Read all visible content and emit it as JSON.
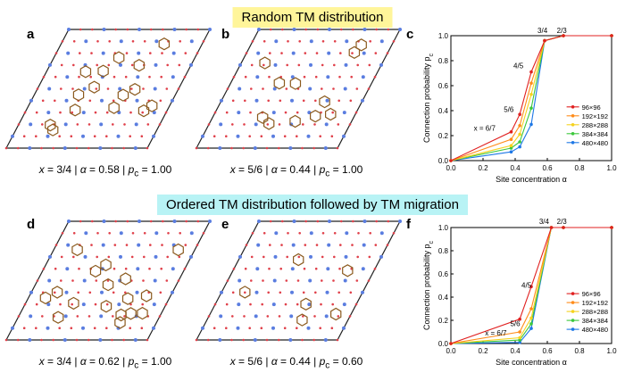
{
  "banners": {
    "top": "Random TM distribution",
    "bottom": "Ordered TM distribution followed by TM migration"
  },
  "panels": [
    {
      "label": "a",
      "caption": {
        "x": "3/4",
        "a": "0.58",
        "pc": "1.00"
      }
    },
    {
      "label": "b",
      "caption": {
        "x": "5/6",
        "a": "0.44",
        "pc": "1.00"
      }
    },
    {
      "label": "d",
      "caption": {
        "x": "3/4",
        "a": "0.62",
        "pc": "1.00"
      }
    },
    {
      "label": "e",
      "caption": {
        "x": "5/6",
        "a": "0.44",
        "pc": "0.60"
      }
    }
  ],
  "caption_tokens": {
    "x": "x",
    "eq": " = ",
    "sep": " | ",
    "alpha": "α",
    "p": "p",
    "c": "c"
  },
  "colors": {
    "lattice_border": "#222222",
    "network": "#8b5a1e",
    "site_blue": "#5a7de0",
    "site_red": "#e0404a"
  },
  "chart_data": [
    {
      "label": "c",
      "type": "line",
      "xlabel": "Site concentration α",
      "ylabel": "Connection probability p_c",
      "xlim": [
        0,
        1.0
      ],
      "ylim": [
        0,
        1.0
      ],
      "xticks": [
        "0.0",
        "0.2",
        "0.4",
        "0.6",
        "0.8",
        "1.0"
      ],
      "yticks": [
        "0.0",
        "0.2",
        "0.4",
        "0.6",
        "0.8",
        "1.0"
      ],
      "legend_position": "center-right",
      "series": [
        {
          "name": "96×96",
          "color": "#e02020",
          "x": [
            0,
            0.375,
            0.4286,
            0.5,
            0.5833,
            0.7,
            1.0
          ],
          "y": [
            0,
            0.23,
            0.37,
            0.71,
            0.96,
            1.0,
            1.0
          ]
        },
        {
          "name": "192×192",
          "color": "#ff8c1a",
          "x": [
            0,
            0.375,
            0.4286,
            0.5,
            0.5833,
            0.7,
            1.0
          ],
          "y": [
            0,
            0.17,
            0.28,
            0.62,
            0.96,
            1.0,
            1.0
          ]
        },
        {
          "name": "288×288",
          "color": "#f5d21e",
          "x": [
            0,
            0.375,
            0.4286,
            0.5,
            0.5833,
            0.7,
            1.0
          ],
          "y": [
            0,
            0.12,
            0.21,
            0.53,
            0.96,
            1.0,
            1.0
          ]
        },
        {
          "name": "384×384",
          "color": "#3cc83c",
          "x": [
            0,
            0.375,
            0.4286,
            0.5,
            0.5833,
            0.7,
            1.0
          ],
          "y": [
            0,
            0.1,
            0.15,
            0.42,
            0.96,
            1.0,
            1.0
          ]
        },
        {
          "name": "480×480",
          "color": "#1e78e6",
          "x": [
            0,
            0.375,
            0.4286,
            0.5,
            0.5833,
            0.7,
            1.0
          ],
          "y": [
            0,
            0.07,
            0.11,
            0.29,
            0.96,
            1.0,
            1.0
          ]
        }
      ],
      "annotations": [
        {
          "text": "x = 6/7",
          "x": 0.21,
          "y": 0.24
        },
        {
          "text": "5/6",
          "x": 0.36,
          "y": 0.39
        },
        {
          "text": "4/5",
          "x": 0.42,
          "y": 0.74
        },
        {
          "text": "3/4",
          "x": 0.57,
          "y": 1.02
        },
        {
          "text": "2/3",
          "x": 0.69,
          "y": 1.02
        }
      ]
    },
    {
      "label": "f",
      "type": "line",
      "xlabel": "Site concentration α",
      "ylabel": "Connection probability p_c",
      "xlim": [
        0,
        1.0
      ],
      "ylim": [
        0,
        1.0
      ],
      "xticks": [
        "0.0",
        "0.2",
        "0.4",
        "0.6",
        "0.8",
        "1.0"
      ],
      "yticks": [
        "0.0",
        "0.2",
        "0.4",
        "0.6",
        "0.8",
        "1.0"
      ],
      "legend_position": "center-right",
      "series": [
        {
          "name": "96×96",
          "color": "#e02020",
          "x": [
            0,
            0.4286,
            0.5,
            0.625,
            0.7,
            1.0
          ],
          "y": [
            0,
            0.21,
            0.49,
            1.0,
            1.0,
            1.0
          ]
        },
        {
          "name": "192×192",
          "color": "#ff8c1a",
          "x": [
            0,
            0.4286,
            0.5,
            0.625,
            0.7,
            1.0
          ],
          "y": [
            0,
            0.1,
            0.3,
            1.0,
            1.0,
            1.0
          ]
        },
        {
          "name": "288×288",
          "color": "#f5d21e",
          "x": [
            0,
            0.4286,
            0.5,
            0.625,
            0.7,
            1.0
          ],
          "y": [
            0,
            0.05,
            0.22,
            1.0,
            1.0,
            1.0
          ]
        },
        {
          "name": "384×384",
          "color": "#3cc83c",
          "x": [
            0,
            0.4286,
            0.5,
            0.625,
            0.7,
            1.0
          ],
          "y": [
            0,
            0.03,
            0.17,
            1.0,
            1.0,
            1.0
          ]
        },
        {
          "name": "480×480",
          "color": "#1e78e6",
          "x": [
            0,
            0.4286,
            0.5,
            0.625,
            0.7,
            1.0
          ],
          "y": [
            0,
            0.01,
            0.13,
            1.0,
            1.0,
            1.0
          ]
        }
      ],
      "annotations": [
        {
          "text": "x = 6/7",
          "x": 0.28,
          "y": 0.07
        },
        {
          "text": "5/6",
          "x": 0.4,
          "y": 0.15
        },
        {
          "text": "4/5",
          "x": 0.47,
          "y": 0.48
        },
        {
          "text": "3/4",
          "x": 0.58,
          "y": 1.03
        },
        {
          "text": "2/3",
          "x": 0.69,
          "y": 1.03
        }
      ]
    }
  ]
}
